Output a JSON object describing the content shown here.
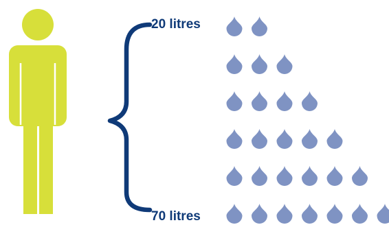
{
  "labels": {
    "top": "20 litres",
    "bottom": "70 litres"
  },
  "rows": [
    {
      "drops": 2
    },
    {
      "drops": 3
    },
    {
      "drops": 4
    },
    {
      "drops": 5
    },
    {
      "drops": 6
    },
    {
      "drops": 7
    }
  ],
  "colors": {
    "person": "#d7df3a",
    "brace": "#0f3a78",
    "label": "#0f3a78",
    "drop": "#7f93c3"
  }
}
